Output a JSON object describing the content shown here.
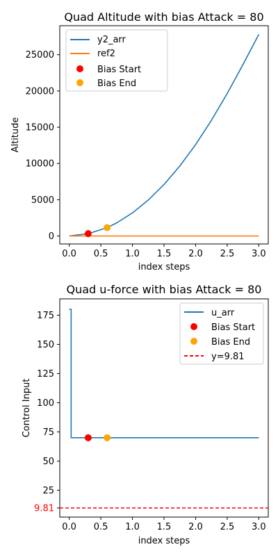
{
  "chart_data": [
    {
      "type": "line",
      "title": "Quad Altitude with bias Attack = 80",
      "xlabel": "index steps",
      "ylabel": "Altitude",
      "xlim": [
        -0.15,
        3.15
      ],
      "ylim": [
        -1100,
        29000
      ],
      "xticks": [
        0.0,
        0.5,
        1.0,
        1.5,
        2.0,
        2.5,
        3.0
      ],
      "xtick_labels": [
        "0.0",
        "0.5",
        "1.0",
        "1.5",
        "2.0",
        "2.5",
        "3.0"
      ],
      "yticks": [
        0,
        5000,
        10000,
        15000,
        20000,
        25000
      ],
      "ytick_labels": [
        "0",
        "5000",
        "10000",
        "15000",
        "20000",
        "25000"
      ],
      "grid": false,
      "legend_position": "top-left",
      "series": [
        {
          "name": "y2_arr",
          "kind": "line",
          "color": "#1f77b4",
          "x": [
            0.0,
            0.3,
            0.6,
            0.75,
            1.0,
            1.25,
            1.5,
            1.75,
            2.0,
            2.25,
            2.5,
            2.75,
            3.0
          ],
          "values": [
            0,
            320,
            1150,
            1800,
            3180,
            4950,
            7100,
            9650,
            12600,
            15950,
            19650,
            23650,
            27800
          ]
        },
        {
          "name": "ref2",
          "kind": "line",
          "color": "#ff7f0e",
          "x": [
            0.0,
            3.0
          ],
          "values": [
            0,
            0
          ]
        },
        {
          "name": "Bias Start",
          "kind": "scatter",
          "color": "#ff0000",
          "x": [
            0.3
          ],
          "values": [
            320
          ]
        },
        {
          "name": "Bias End",
          "kind": "scatter",
          "color": "#ffa500",
          "x": [
            0.6
          ],
          "values": [
            1150
          ]
        }
      ]
    },
    {
      "type": "line",
      "title": "Quad u-force with bias Attack = 80",
      "xlabel": "index steps",
      "ylabel": "Control Input",
      "xlim": [
        -0.15,
        3.15
      ],
      "ylim": [
        2,
        189
      ],
      "xticks": [
        0.0,
        0.5,
        1.0,
        1.5,
        2.0,
        2.5,
        3.0
      ],
      "xtick_labels": [
        "0.0",
        "0.5",
        "1.0",
        "1.5",
        "2.0",
        "2.5",
        "3.0"
      ],
      "yticks": [
        25,
        50,
        75,
        100,
        125,
        150,
        175
      ],
      "ytick_labels": [
        "25",
        "50",
        "75",
        "100",
        "125",
        "150",
        "175"
      ],
      "extra_ytick": {
        "value": 9.81,
        "label": "9.81",
        "color": "#ff0000"
      },
      "grid": false,
      "legend_position": "top-right",
      "series": [
        {
          "name": "u_arr",
          "kind": "line",
          "color": "#1f77b4",
          "x": [
            0.0,
            0.03,
            0.03,
            3.0
          ],
          "values": [
            180,
            180,
            70,
            70
          ]
        },
        {
          "name": "Bias Start",
          "kind": "scatter",
          "color": "#ff0000",
          "x": [
            0.3
          ],
          "values": [
            70
          ]
        },
        {
          "name": "Bias End",
          "kind": "scatter",
          "color": "#ffa500",
          "x": [
            0.6
          ],
          "values": [
            70
          ]
        },
        {
          "name": "y=9.81",
          "kind": "hline",
          "color": "#ff0000",
          "values": [
            9.81
          ]
        }
      ]
    }
  ]
}
